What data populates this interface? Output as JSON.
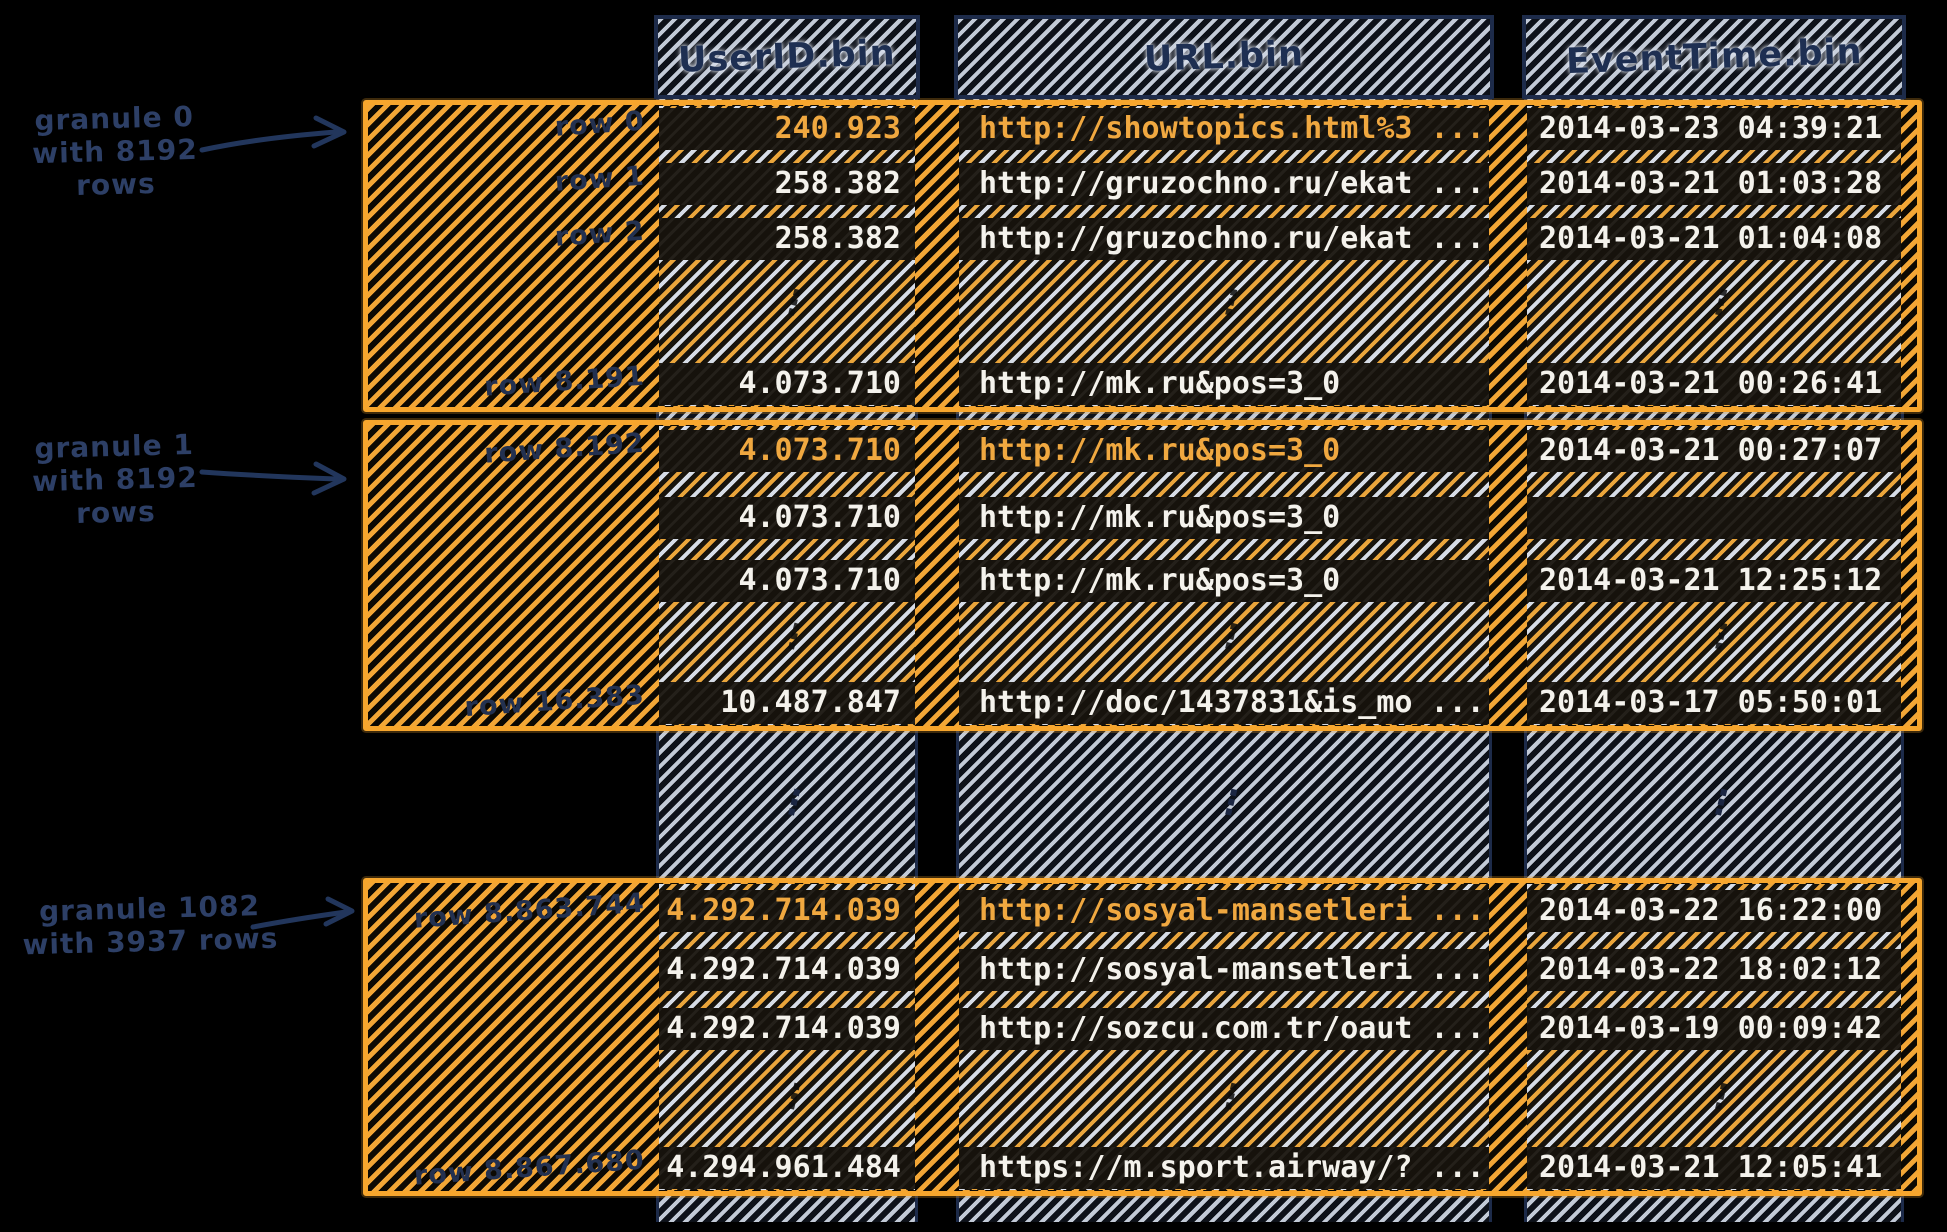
{
  "columns": [
    {
      "header": "UserID.bin"
    },
    {
      "header": "URL.bin"
    },
    {
      "header": "EventTime.bin"
    }
  ],
  "granules": [
    {
      "annotation": {
        "line1": "granule 0",
        "line2": "with 8192 rows"
      },
      "rows": [
        {
          "label": "row 0",
          "highlight": true,
          "user_id": "240.923",
          "url": "http://showtopics.html%3 ...",
          "event_time": "2014-03-23 04:39:21"
        },
        {
          "label": "row 1",
          "highlight": false,
          "user_id": "258.382",
          "url": "http://gruzochno.ru/ekat ...",
          "event_time": "2014-03-21 01:03:28"
        },
        {
          "label": "row 2",
          "highlight": false,
          "user_id": "258.382",
          "url": "http://gruzochno.ru/ekat ...",
          "event_time": "2014-03-21 01:04:08"
        },
        {
          "label": "row 8.191",
          "highlight": false,
          "user_id": "4.073.710",
          "url": "http://mk.ru&pos=3_0",
          "event_time": "2014-03-21 00:26:41"
        }
      ]
    },
    {
      "annotation": {
        "line1": "granule 1",
        "line2": "with 8192 rows"
      },
      "rows": [
        {
          "label": "row 8.192",
          "highlight": true,
          "user_id": "4.073.710",
          "url": "http://mk.ru&pos=3_0",
          "event_time": "2014-03-21 00:27:07"
        },
        {
          "label": "",
          "highlight": false,
          "user_id": "4.073.710",
          "url": "http://mk.ru&pos=3_0",
          "event_time": ""
        },
        {
          "label": "",
          "highlight": false,
          "user_id": "4.073.710",
          "url": "http://mk.ru&pos=3_0",
          "event_time": "2014-03-21 12:25:12"
        },
        {
          "label": "row 16.383",
          "highlight": false,
          "user_id": "10.487.847",
          "url": "http://doc/1437831&is_mo ...",
          "event_time": "2014-03-17 05:50:01"
        }
      ]
    },
    {
      "annotation": {
        "line1": "granule 1082",
        "line2": "with 3937 rows"
      },
      "rows": [
        {
          "label": "row 8.863.744",
          "highlight": true,
          "user_id": "4.292.714.039",
          "url": "http://sosyal-mansetleri ...",
          "event_time": "2014-03-22 16:22:00"
        },
        {
          "label": "",
          "highlight": false,
          "user_id": "4.292.714.039",
          "url": "http://sosyal-mansetleri ...",
          "event_time": "2014-03-22 18:02:12"
        },
        {
          "label": "",
          "highlight": false,
          "user_id": "4.292.714.039",
          "url": "http://sozcu.com.tr/oaut ...",
          "event_time": "2014-03-19 00:09:42"
        },
        {
          "label": "row 8.867.680",
          "highlight": false,
          "user_id": "4.294.961.484",
          "url": "https://m.sport.airway/? ...",
          "event_time": "2014-03-21 12:05:41"
        }
      ]
    }
  ],
  "icons": {
    "ellipsis": "⋮"
  },
  "colors": {
    "background": "#000000",
    "granule_border": "#f7a62d",
    "granule_hatch": "#f2a636",
    "column_hatch": "#ccd4e1",
    "navy_border": "#1d2b4a",
    "annotation_text": "#2d3f66",
    "row_text": "#f4f2ec",
    "row_text_highlight": "#f0a840"
  }
}
